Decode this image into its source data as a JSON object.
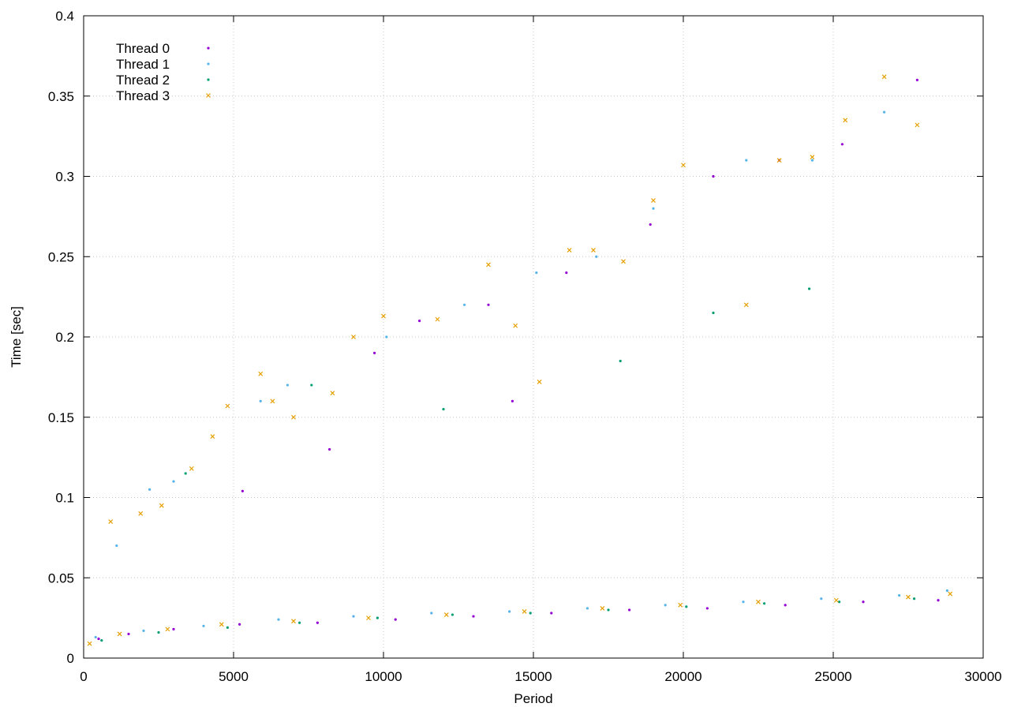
{
  "chart_data": {
    "type": "scatter",
    "title": "",
    "xlabel": "Period",
    "ylabel": "Time [sec]",
    "xlim": [
      0,
      30000
    ],
    "ylim": [
      0,
      0.4
    ],
    "x_ticks": [
      0,
      5000,
      10000,
      15000,
      20000,
      25000,
      30000
    ],
    "x_tick_labels": [
      "0",
      "5000",
      "10000",
      "15000",
      "20000",
      "25000",
      "30000"
    ],
    "y_ticks": [
      0,
      0.05,
      0.1,
      0.15,
      0.2,
      0.25,
      0.3,
      0.35,
      0.4
    ],
    "y_tick_labels": [
      "0",
      "0.05",
      "0.1",
      "0.15",
      "0.2",
      "0.25",
      "0.3",
      "0.35",
      "0.4"
    ],
    "grid": true,
    "legend_position": "top-left",
    "series": [
      {
        "name": "Thread 0",
        "color": "#9400d3",
        "marker": "dot",
        "points": [
          [
            500,
            0.012
          ],
          [
            1500,
            0.015
          ],
          [
            3000,
            0.018
          ],
          [
            5200,
            0.021
          ],
          [
            7800,
            0.022
          ],
          [
            10400,
            0.024
          ],
          [
            13000,
            0.026
          ],
          [
            15600,
            0.028
          ],
          [
            18200,
            0.03
          ],
          [
            20800,
            0.031
          ],
          [
            23400,
            0.033
          ],
          [
            26000,
            0.035
          ],
          [
            28500,
            0.036
          ],
          [
            5300,
            0.104
          ],
          [
            8200,
            0.13
          ],
          [
            9700,
            0.19
          ],
          [
            11200,
            0.21
          ],
          [
            13500,
            0.22
          ],
          [
            14300,
            0.16
          ],
          [
            16100,
            0.24
          ],
          [
            18900,
            0.27
          ],
          [
            21000,
            0.3
          ],
          [
            23200,
            0.31
          ],
          [
            25300,
            0.32
          ],
          [
            27800,
            0.36
          ]
        ]
      },
      {
        "name": "Thread 1",
        "color": "#56b4e9",
        "marker": "dot",
        "points": [
          [
            400,
            0.013
          ],
          [
            2000,
            0.017
          ],
          [
            4000,
            0.02
          ],
          [
            6500,
            0.024
          ],
          [
            9000,
            0.026
          ],
          [
            11600,
            0.028
          ],
          [
            14200,
            0.029
          ],
          [
            16800,
            0.031
          ],
          [
            19400,
            0.033
          ],
          [
            22000,
            0.035
          ],
          [
            24600,
            0.037
          ],
          [
            27200,
            0.039
          ],
          [
            28800,
            0.042
          ],
          [
            1100,
            0.07
          ],
          [
            2200,
            0.105
          ],
          [
            3000,
            0.11
          ],
          [
            5900,
            0.16
          ],
          [
            6800,
            0.17
          ],
          [
            10100,
            0.2
          ],
          [
            12700,
            0.22
          ],
          [
            15100,
            0.24
          ],
          [
            17100,
            0.25
          ],
          [
            19000,
            0.28
          ],
          [
            22100,
            0.31
          ],
          [
            24300,
            0.31
          ],
          [
            26700,
            0.34
          ]
        ]
      },
      {
        "name": "Thread 2",
        "color": "#009e73",
        "marker": "dot",
        "points": [
          [
            600,
            0.011
          ],
          [
            2500,
            0.016
          ],
          [
            4800,
            0.019
          ],
          [
            7200,
            0.022
          ],
          [
            9800,
            0.025
          ],
          [
            12300,
            0.027
          ],
          [
            14900,
            0.028
          ],
          [
            17500,
            0.03
          ],
          [
            20100,
            0.032
          ],
          [
            22700,
            0.034
          ],
          [
            25200,
            0.035
          ],
          [
            27700,
            0.037
          ],
          [
            3400,
            0.115
          ],
          [
            7600,
            0.17
          ],
          [
            12000,
            0.155
          ],
          [
            17900,
            0.185
          ],
          [
            21000,
            0.215
          ],
          [
            24200,
            0.23
          ]
        ]
      },
      {
        "name": "Thread 3",
        "color": "#e69f00",
        "marker": "cross",
        "points": [
          [
            200,
            0.009
          ],
          [
            1200,
            0.015
          ],
          [
            2800,
            0.018
          ],
          [
            4600,
            0.021
          ],
          [
            7000,
            0.023
          ],
          [
            9500,
            0.025
          ],
          [
            12100,
            0.027
          ],
          [
            14700,
            0.029
          ],
          [
            17300,
            0.031
          ],
          [
            19900,
            0.033
          ],
          [
            22500,
            0.035
          ],
          [
            25100,
            0.036
          ],
          [
            27500,
            0.038
          ],
          [
            28900,
            0.04
          ],
          [
            900,
            0.085
          ],
          [
            1900,
            0.09
          ],
          [
            2600,
            0.095
          ],
          [
            3600,
            0.118
          ],
          [
            4300,
            0.138
          ],
          [
            4800,
            0.157
          ],
          [
            5900,
            0.177
          ],
          [
            6300,
            0.16
          ],
          [
            7000,
            0.15
          ],
          [
            8300,
            0.165
          ],
          [
            9000,
            0.2
          ],
          [
            10000,
            0.213
          ],
          [
            11800,
            0.211
          ],
          [
            13500,
            0.245
          ],
          [
            14400,
            0.207
          ],
          [
            15200,
            0.172
          ],
          [
            16200,
            0.254
          ],
          [
            17000,
            0.254
          ],
          [
            18000,
            0.247
          ],
          [
            19000,
            0.285
          ],
          [
            20000,
            0.307
          ],
          [
            22100,
            0.22
          ],
          [
            23200,
            0.31
          ],
          [
            24300,
            0.312
          ],
          [
            25400,
            0.335
          ],
          [
            26700,
            0.362
          ],
          [
            27800,
            0.332
          ]
        ]
      }
    ]
  }
}
